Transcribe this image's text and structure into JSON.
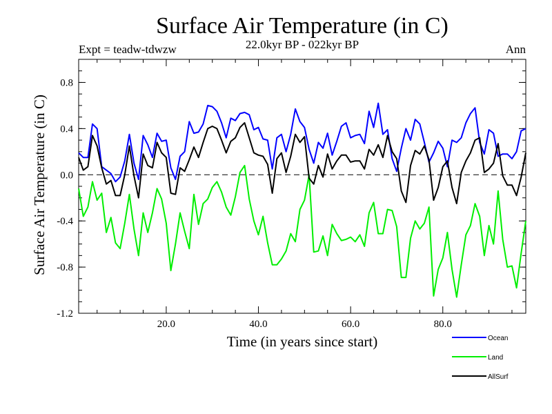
{
  "chart_data": {
    "type": "line",
    "title": "Surface Air Temperature (in C)",
    "left_label": "Expt = teadw-tdwzw",
    "center_label": "22.0kyr BP - 022kyr BP",
    "right_label": "Ann",
    "xlabel": "Time (in years since start)",
    "ylabel": "Surface Air Temperature (in C)",
    "xlim": [
      1,
      98
    ],
    "ylim": [
      -1.2,
      1.0
    ],
    "x_ticks": [
      20,
      40,
      60,
      80
    ],
    "x_tick_labels": [
      "20.0",
      "40.0",
      "60.0",
      "80.0"
    ],
    "y_ticks": [
      -1.2,
      -0.8,
      -0.4,
      0.0,
      0.4,
      0.8
    ],
    "y_tick_labels": [
      "-1.2",
      "-0.8",
      "-0.4",
      "0.0",
      "0.4",
      "0.8"
    ],
    "zero_line": true,
    "x": [
      1,
      2,
      3,
      4,
      5,
      6,
      7,
      8,
      9,
      10,
      11,
      12,
      13,
      14,
      15,
      16,
      17,
      18,
      19,
      20,
      21,
      22,
      23,
      24,
      25,
      26,
      27,
      28,
      29,
      30,
      31,
      32,
      33,
      34,
      35,
      36,
      37,
      38,
      39,
      40,
      41,
      42,
      43,
      44,
      45,
      46,
      47,
      48,
      49,
      50,
      51,
      52,
      53,
      54,
      55,
      56,
      57,
      58,
      59,
      60,
      61,
      62,
      63,
      64,
      65,
      66,
      67,
      68,
      69,
      70,
      71,
      72,
      73,
      74,
      75,
      76,
      77,
      78,
      79,
      80,
      81,
      82,
      83,
      84,
      85,
      86,
      87,
      88,
      89,
      90,
      91,
      92,
      93,
      94,
      95,
      96,
      97,
      98
    ],
    "series": [
      {
        "name": "Ocean",
        "color": "#0000ff",
        "values": [
          0.19,
          0.15,
          0.15,
          0.44,
          0.4,
          0.07,
          0.04,
          0.01,
          -0.06,
          -0.02,
          0.12,
          0.35,
          0.1,
          -0.04,
          0.34,
          0.26,
          0.15,
          0.36,
          0.29,
          0.3,
          0.06,
          -0.04,
          0.16,
          0.2,
          0.46,
          0.36,
          0.37,
          0.44,
          0.6,
          0.59,
          0.55,
          0.45,
          0.32,
          0.49,
          0.47,
          0.53,
          0.54,
          0.52,
          0.39,
          0.41,
          0.31,
          0.3,
          0.05,
          0.32,
          0.35,
          0.2,
          0.35,
          0.57,
          0.46,
          0.41,
          0.22,
          0.1,
          0.28,
          0.23,
          0.36,
          0.17,
          0.29,
          0.42,
          0.45,
          0.32,
          0.34,
          0.35,
          0.27,
          0.55,
          0.41,
          0.62,
          0.35,
          0.39,
          0.14,
          0.03,
          0.23,
          0.4,
          0.3,
          0.48,
          0.44,
          0.28,
          0.11,
          0.19,
          0.29,
          0.23,
          0.07,
          0.3,
          0.28,
          0.32,
          0.45,
          0.53,
          0.58,
          0.28,
          0.18,
          0.39,
          0.36,
          0.16,
          0.18,
          0.18,
          0.14,
          0.2,
          0.38,
          0.4
        ]
      },
      {
        "name": "Land",
        "color": "#00ee00",
        "values": [
          -0.12,
          -0.36,
          -0.28,
          -0.06,
          -0.22,
          -0.16,
          -0.5,
          -0.37,
          -0.59,
          -0.64,
          -0.42,
          -0.17,
          -0.47,
          -0.7,
          -0.33,
          -0.5,
          -0.33,
          -0.12,
          -0.21,
          -0.42,
          -0.83,
          -0.6,
          -0.33,
          -0.49,
          -0.64,
          -0.17,
          -0.43,
          -0.25,
          -0.21,
          -0.11,
          -0.06,
          -0.15,
          -0.28,
          -0.35,
          -0.19,
          0.02,
          0.08,
          -0.21,
          -0.4,
          -0.52,
          -0.36,
          -0.59,
          -0.78,
          -0.78,
          -0.73,
          -0.66,
          -0.51,
          -0.58,
          -0.3,
          -0.22,
          0.0,
          -0.67,
          -0.66,
          -0.53,
          -0.7,
          -0.43,
          -0.51,
          -0.57,
          -0.56,
          -0.54,
          -0.58,
          -0.52,
          -0.62,
          -0.33,
          -0.24,
          -0.51,
          -0.51,
          -0.3,
          -0.31,
          -0.45,
          -0.89,
          -0.89,
          -0.55,
          -0.4,
          -0.47,
          -0.42,
          -0.28,
          -1.05,
          -0.82,
          -0.72,
          -0.5,
          -0.82,
          -1.06,
          -0.78,
          -0.52,
          -0.44,
          -0.25,
          -0.36,
          -0.7,
          -0.44,
          -0.6,
          -0.14,
          -0.56,
          -0.8,
          -0.79,
          -0.98,
          -0.68,
          -0.4
        ]
      },
      {
        "name": "AllSurf",
        "color": "#000000",
        "values": [
          0.15,
          0.04,
          0.07,
          0.34,
          0.25,
          0.06,
          -0.08,
          -0.05,
          -0.18,
          -0.18,
          0.0,
          0.25,
          -0.01,
          -0.2,
          0.18,
          0.08,
          0.06,
          0.28,
          0.19,
          0.15,
          -0.16,
          -0.17,
          0.06,
          0.03,
          0.13,
          0.24,
          0.15,
          0.28,
          0.4,
          0.42,
          0.4,
          0.3,
          0.19,
          0.29,
          0.32,
          0.41,
          0.45,
          0.32,
          0.19,
          0.17,
          0.16,
          0.09,
          -0.16,
          0.14,
          0.19,
          0.02,
          0.16,
          0.35,
          0.28,
          0.33,
          -0.03,
          -0.08,
          0.08,
          -0.02,
          0.18,
          0.05,
          0.12,
          0.17,
          0.17,
          0.11,
          0.12,
          0.12,
          0.05,
          0.22,
          0.17,
          0.26,
          0.15,
          0.34,
          0.2,
          0.14,
          -0.14,
          -0.24,
          0.08,
          0.21,
          0.18,
          0.25,
          0.13,
          -0.22,
          -0.11,
          0.07,
          0.12,
          -0.11,
          -0.25,
          0.02,
          0.12,
          0.19,
          0.3,
          0.32,
          0.02,
          0.05,
          0.1,
          0.27,
          -0.01,
          -0.09,
          -0.09,
          -0.18,
          -0.02,
          0.19
        ]
      }
    ],
    "legend": [
      "Ocean",
      "Land",
      "AllSurf"
    ]
  }
}
